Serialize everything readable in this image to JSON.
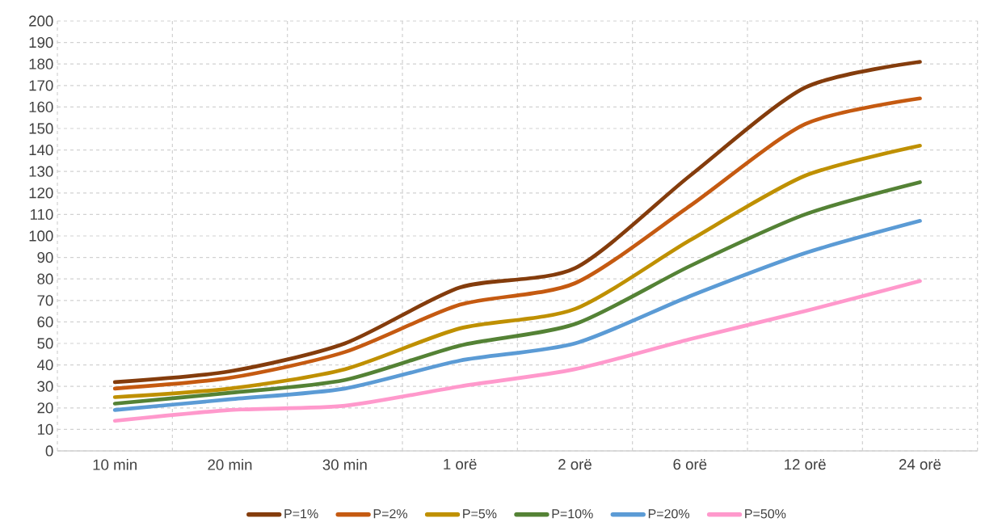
{
  "chart_data": {
    "type": "line",
    "categories": [
      "10 min",
      "20 min",
      "30 min",
      "1 orë",
      "2 orë",
      "6 orë",
      "12 orë",
      "24 orë"
    ],
    "series": [
      {
        "name": "P=1%",
        "color": "#843c0c",
        "values": [
          32,
          37,
          50,
          76,
          85,
          128,
          169,
          181
        ]
      },
      {
        "name": "P=2%",
        "color": "#c55a11",
        "values": [
          29,
          34,
          46,
          68,
          78,
          114,
          152,
          164
        ]
      },
      {
        "name": "P=5%",
        "color": "#bf9000",
        "values": [
          25,
          29,
          38,
          57,
          66,
          98,
          128,
          142
        ]
      },
      {
        "name": "P=10%",
        "color": "#548235",
        "values": [
          22,
          27,
          33,
          49,
          59,
          86,
          110,
          125
        ]
      },
      {
        "name": "P=20%",
        "color": "#5b9bd5",
        "values": [
          19,
          24,
          29,
          42,
          50,
          72,
          92,
          107
        ]
      },
      {
        "name": "P=50%",
        "color": "#ff99cc",
        "values": [
          14,
          19,
          21,
          30,
          38,
          52,
          65,
          79
        ]
      }
    ],
    "ylim": [
      0,
      200
    ],
    "yticks": [
      0,
      10,
      20,
      30,
      40,
      50,
      60,
      70,
      80,
      90,
      100,
      110,
      120,
      130,
      140,
      150,
      160,
      170,
      180,
      190,
      200
    ],
    "grid": true,
    "legend": "bottom",
    "marker": "none",
    "line_style": "solid"
  }
}
